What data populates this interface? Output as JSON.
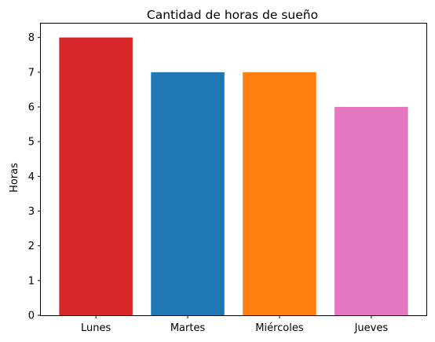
{
  "chart_data": {
    "type": "bar",
    "title": "Cantidad de horas de sueño",
    "xlabel": "",
    "ylabel": "Horas",
    "categories": [
      "Lunes",
      "Martes",
      "Miércoles",
      "Jueves"
    ],
    "values": [
      8,
      7,
      7,
      6
    ],
    "colors": [
      "#d62728",
      "#1f77b4",
      "#ff7f0e",
      "#e377c2"
    ],
    "ylim": [
      0,
      8.4
    ],
    "yticks": [
      0,
      1,
      2,
      3,
      4,
      5,
      6,
      7,
      8
    ],
    "grid": false,
    "legend": "none"
  }
}
